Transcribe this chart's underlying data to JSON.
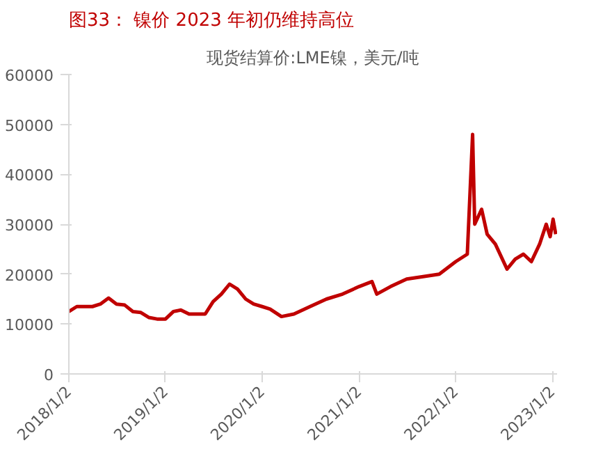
{
  "chart_data": {
    "type": "line",
    "title": "图33： 镍价 2023 年初仍维持高位",
    "subtitle": "现货结算价:LME镍，美元/吨",
    "x": [
      "2018-01-02",
      "2018-02-01",
      "2018-03-01",
      "2018-04-01",
      "2018-05-01",
      "2018-06-01",
      "2018-07-01",
      "2018-08-01",
      "2018-09-01",
      "2018-10-01",
      "2018-11-01",
      "2018-12-01",
      "2019-01-02",
      "2019-02-01",
      "2019-03-01",
      "2019-04-01",
      "2019-05-01",
      "2019-06-01",
      "2019-07-01",
      "2019-08-01",
      "2019-09-01",
      "2019-10-01",
      "2019-11-01",
      "2019-12-01",
      "2020-01-02",
      "2020-02-01",
      "2020-03-15",
      "2020-05-01",
      "2020-07-01",
      "2020-09-01",
      "2020-11-01",
      "2021-01-02",
      "2021-02-20",
      "2021-03-10",
      "2021-05-01",
      "2021-07-01",
      "2021-09-01",
      "2021-11-01",
      "2022-01-02",
      "2022-02-15",
      "2022-03-07",
      "2022-03-15",
      "2022-04-10",
      "2022-05-01",
      "2022-06-01",
      "2022-07-15",
      "2022-08-15",
      "2022-09-15",
      "2022-10-15",
      "2022-11-15",
      "2022-12-10",
      "2022-12-25",
      "2023-01-05",
      "2023-01-15"
    ],
    "series": [
      {
        "color": "#c00000",
        "values": [
          12500,
          13500,
          13500,
          13500,
          14000,
          15200,
          14000,
          13800,
          12500,
          12300,
          11300,
          11000,
          11000,
          12500,
          12800,
          12000,
          12000,
          12000,
          14500,
          16000,
          18000,
          17000,
          15000,
          14000,
          13500,
          13000,
          11500,
          12000,
          13500,
          15000,
          16000,
          17500,
          18500,
          16000,
          17500,
          19000,
          19500,
          20000,
          22500,
          24000,
          48000,
          30000,
          33000,
          28000,
          26000,
          21000,
          23000,
          24000,
          22500,
          26000,
          30000,
          27500,
          31000,
          28000
        ]
      }
    ],
    "xlim": [
      "2018-01-02",
      "2023-01-20"
    ],
    "xticks": [
      {
        "value": "2018-01-02",
        "label": "2018/1/2"
      },
      {
        "value": "2019-01-02",
        "label": "2019/1/2"
      },
      {
        "value": "2020-01-02",
        "label": "2020/1/2"
      },
      {
        "value": "2021-01-02",
        "label": "2021/1/2"
      },
      {
        "value": "2022-01-02",
        "label": "2022/1/2"
      },
      {
        "value": "2023-01-02",
        "label": "2023/1/2"
      }
    ],
    "ylim": [
      0,
      60000
    ],
    "yticks": [
      0,
      10000,
      20000,
      30000,
      40000,
      50000,
      60000
    ],
    "grid": false,
    "marker": "none",
    "line_style": "solid"
  }
}
